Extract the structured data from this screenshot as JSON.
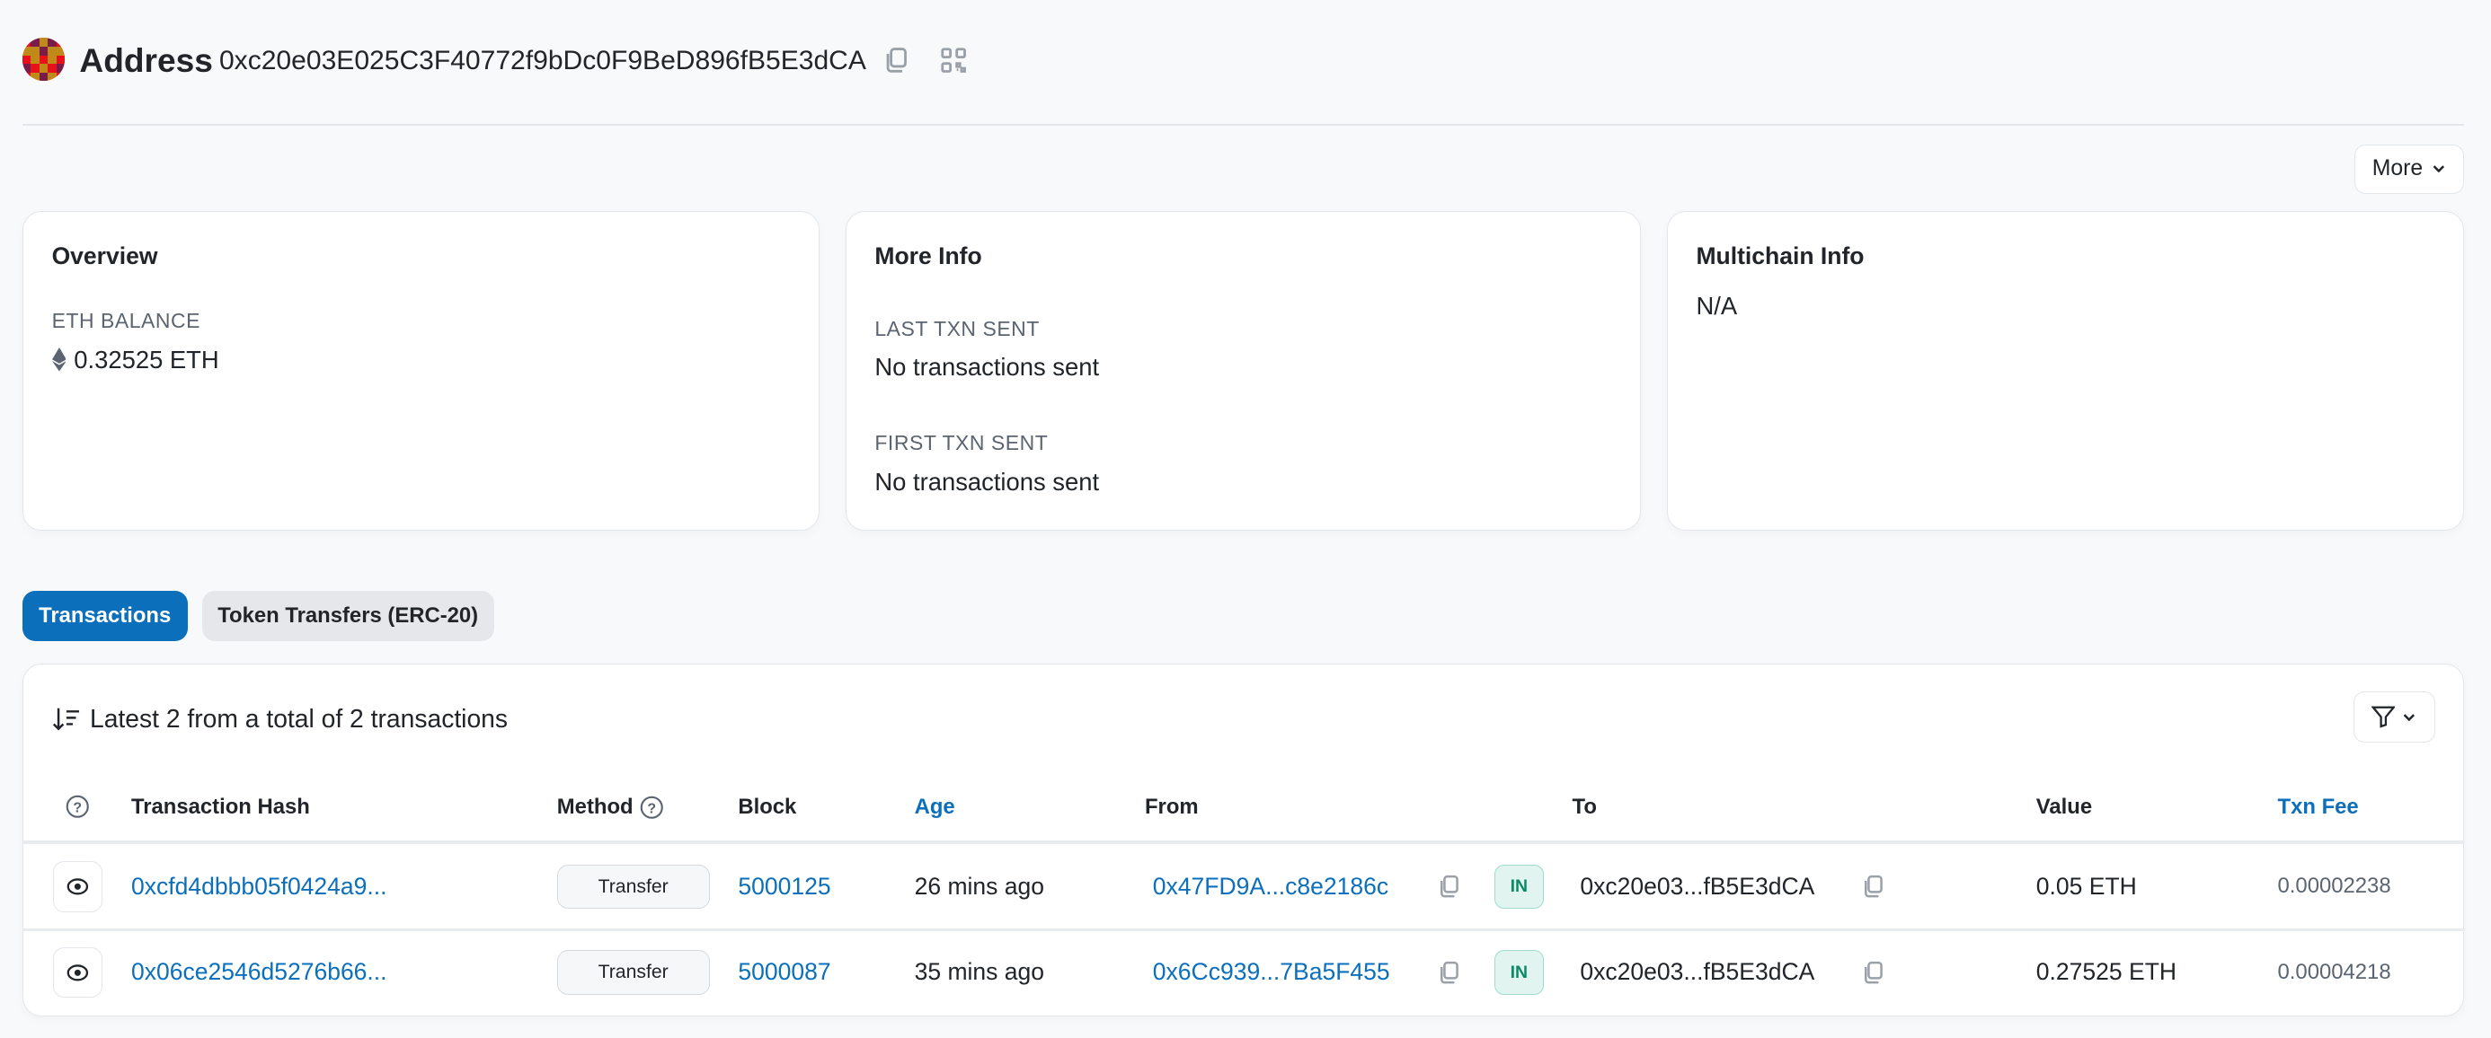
{
  "header": {
    "title": "Address",
    "address": "0xc20e03E025C3F40772f9bDc0F9BeD896fB5E3dCA",
    "copy_icon": "copy-icon",
    "qr_icon": "qr-code-icon"
  },
  "more_button": {
    "label": "More"
  },
  "overview": {
    "title": "Overview",
    "balance_label": "ETH BALANCE",
    "balance_value": "0.32525 ETH"
  },
  "more_info": {
    "title": "More Info",
    "last_label": "LAST TXN SENT",
    "last_value": "No transactions sent",
    "first_label": "FIRST TXN SENT",
    "first_value": "No transactions sent"
  },
  "multichain": {
    "title": "Multichain Info",
    "value": "N/A"
  },
  "tabs": [
    {
      "label": "Transactions",
      "active": true
    },
    {
      "label": "Token Transfers (ERC-20)",
      "active": false
    }
  ],
  "table": {
    "summary": "Latest 2 from a total of 2 transactions",
    "columns": {
      "hash": "Transaction Hash",
      "method": "Method",
      "block": "Block",
      "age": "Age",
      "from": "From",
      "to": "To",
      "value": "Value",
      "fee": "Txn Fee"
    },
    "rows": [
      {
        "hash": "0xcfd4dbbb05f0424a9...",
        "method": "Transfer",
        "block": "5000125",
        "age": "26 mins ago",
        "from": "0x47FD9A...c8e2186c",
        "direction": "IN",
        "to": "0xc20e03...fB5E3dCA",
        "value": "0.05 ETH",
        "fee": "0.00002238"
      },
      {
        "hash": "0x06ce2546d5276b66...",
        "method": "Transfer",
        "block": "5000087",
        "age": "35 mins ago",
        "from": "0x6Cc939...7Ba5F455",
        "direction": "IN",
        "to": "0xc20e03...fB5E3dCA",
        "value": "0.27525 ETH",
        "fee": "0.00004218"
      }
    ]
  },
  "colors": {
    "accent": "#0c6fbc",
    "in_badge": "#0b8a66"
  }
}
